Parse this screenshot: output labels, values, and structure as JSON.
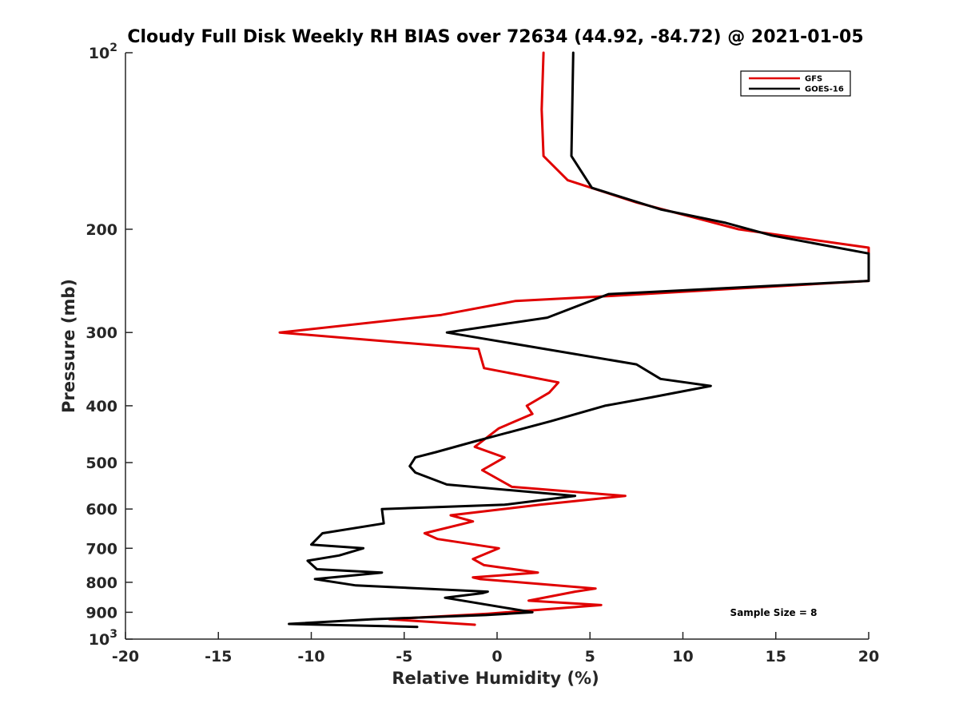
{
  "chart_data": {
    "type": "line",
    "title": "Cloudy Full Disk Weekly RH BIAS over 72634 (44.92, -84.72) @ 2021-01-05",
    "xlabel": "Relative Humidity (%)",
    "ylabel": "Pressure (mb)",
    "xlim": [
      -20,
      20
    ],
    "ylim": [
      100,
      1000
    ],
    "yscale": "log",
    "y_reversed": true,
    "grid": false,
    "legend_position": "top-right",
    "x_ticks": [
      -20,
      -15,
      -10,
      -5,
      0,
      5,
      10,
      15,
      20
    ],
    "x_tick_labels": [
      "-20",
      "-15",
      "-10",
      "-5",
      "0",
      "5",
      "10",
      "15",
      "20"
    ],
    "y_ticks": [
      100,
      200,
      300,
      400,
      500,
      600,
      700,
      800,
      900,
      1000
    ],
    "y_tick_labels": [
      {
        "base": "10",
        "exp": "2"
      },
      {
        "base": "200",
        "exp": ""
      },
      {
        "base": "300",
        "exp": ""
      },
      {
        "base": "400",
        "exp": ""
      },
      {
        "base": "500",
        "exp": ""
      },
      {
        "base": "600",
        "exp": ""
      },
      {
        "base": "700",
        "exp": ""
      },
      {
        "base": "800",
        "exp": ""
      },
      {
        "base": "900",
        "exp": ""
      },
      {
        "base": "10",
        "exp": "3"
      }
    ],
    "annotation": "Sample Size = 8",
    "series": [
      {
        "name": "GFS",
        "color": "#e00000",
        "points": [
          [
            2.5,
            100
          ],
          [
            2.4,
            125
          ],
          [
            2.5,
            150
          ],
          [
            3.8,
            165
          ],
          [
            7.5,
            180
          ],
          [
            13,
            200
          ],
          [
            20,
            215
          ],
          [
            20,
            245
          ],
          [
            6,
            260
          ],
          [
            1,
            265
          ],
          [
            -3,
            280
          ],
          [
            -11.7,
            300
          ],
          [
            -1,
            320
          ],
          [
            -0.7,
            345
          ],
          [
            3.3,
            365
          ],
          [
            2.8,
            380
          ],
          [
            1.6,
            400
          ],
          [
            1.9,
            413
          ],
          [
            0.1,
            437
          ],
          [
            -1.2,
            470
          ],
          [
            0.4,
            490
          ],
          [
            -0.8,
            515
          ],
          [
            0.8,
            550
          ],
          [
            6.9,
            570
          ],
          [
            2.3,
            590
          ],
          [
            -2.5,
            615
          ],
          [
            -1.3,
            630
          ],
          [
            -3.9,
            660
          ],
          [
            -3.2,
            675
          ],
          [
            0.1,
            700
          ],
          [
            -1.3,
            730
          ],
          [
            -0.7,
            748
          ],
          [
            2.2,
            770
          ],
          [
            -1.3,
            785
          ],
          [
            -0.9,
            790
          ],
          [
            5.3,
            820
          ],
          [
            4.2,
            830
          ],
          [
            1.7,
            860
          ],
          [
            5.6,
            875
          ],
          [
            -0.5,
            905
          ],
          [
            -5.8,
            925
          ],
          [
            -1.2,
            945
          ]
        ]
      },
      {
        "name": "GOES-16",
        "color": "#000000",
        "points": [
          [
            4.1,
            100
          ],
          [
            4,
            150
          ],
          [
            5.1,
            170
          ],
          [
            8.8,
            185
          ],
          [
            12.3,
            195
          ],
          [
            14.8,
            205
          ],
          [
            20,
            220
          ],
          [
            20,
            245
          ],
          [
            6,
            258
          ],
          [
            2.7,
            283
          ],
          [
            -2.7,
            300
          ],
          [
            7.5,
            340
          ],
          [
            8.8,
            360
          ],
          [
            11.5,
            370
          ],
          [
            8.3,
            387
          ],
          [
            5.8,
            400
          ],
          [
            2.9,
            425
          ],
          [
            -1.2,
            460
          ],
          [
            -3.3,
            480
          ],
          [
            -4.4,
            490
          ],
          [
            -4.7,
            507
          ],
          [
            -4.4,
            520
          ],
          [
            -2.7,
            545
          ],
          [
            4.2,
            570
          ],
          [
            0.4,
            590
          ],
          [
            -6.2,
            600
          ],
          [
            -6.1,
            635
          ],
          [
            -9.4,
            660
          ],
          [
            -10,
            690
          ],
          [
            -7.2,
            700
          ],
          [
            -8.5,
            720
          ],
          [
            -10.2,
            735
          ],
          [
            -9.7,
            760
          ],
          [
            -6.2,
            770
          ],
          [
            -9.8,
            790
          ],
          [
            -7.6,
            810
          ],
          [
            -0.5,
            830
          ],
          [
            -0.8,
            835
          ],
          [
            -2.8,
            850
          ],
          [
            1.9,
            900
          ],
          [
            -0.6,
            910
          ],
          [
            -6.7,
            925
          ],
          [
            -11.2,
            942
          ],
          [
            -4.3,
            953
          ]
        ]
      }
    ]
  }
}
